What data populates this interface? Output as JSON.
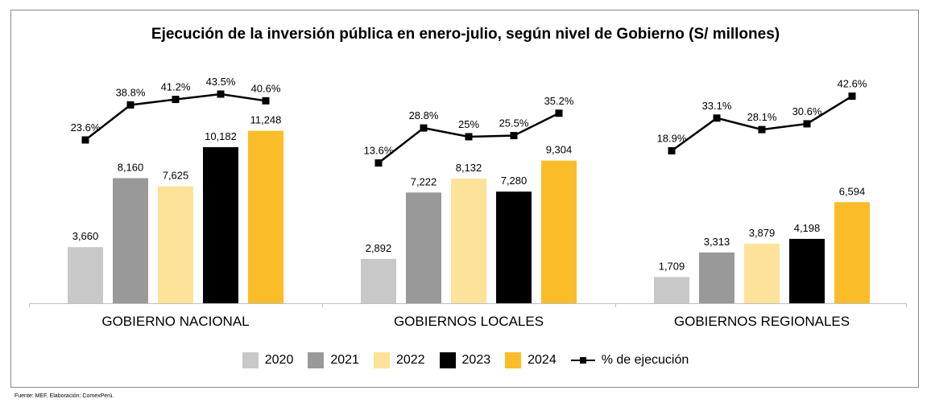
{
  "title": "Ejecución de la inversión pública en enero-julio, según nivel de Gobierno (S/ millones)",
  "source": "Fuente: MEF. Elaboración: ComexPerú.",
  "chart_data": {
    "type": "bar",
    "title": "Ejecución de la inversión pública en enero-julio, según nivel de Gobierno (S/ millones)",
    "categories": [
      "GOBIERNO NACIONAL",
      "GOBIERNOS LOCALES",
      "GOBIERNOS REGIONALES"
    ],
    "series": [
      {
        "name": "2020",
        "color": "#c8c8c8",
        "values": [
          3660,
          2892,
          1709
        ],
        "labels": [
          "3,660",
          "2,892",
          "1,709"
        ]
      },
      {
        "name": "2021",
        "color": "#999999",
        "values": [
          8160,
          7222,
          3313
        ],
        "labels": [
          "8,160",
          "7,222",
          "3,313"
        ]
      },
      {
        "name": "2022",
        "color": "#fde29a",
        "values": [
          7625,
          8132,
          3879
        ],
        "labels": [
          "7,625",
          "8,132",
          "3,879"
        ]
      },
      {
        "name": "2023",
        "color": "#000000",
        "values": [
          10182,
          7280,
          4198
        ],
        "labels": [
          "10,182",
          "7,280",
          "4,198"
        ]
      },
      {
        "name": "2024",
        "color": "#fbbc29",
        "values": [
          11248,
          9304,
          6594
        ],
        "labels": [
          "11,248",
          "9,304",
          "6,594"
        ]
      }
    ],
    "line_series": {
      "name": "% de ejecución",
      "color": "#000000",
      "values": [
        [
          23.6,
          38.8,
          41.2,
          43.5,
          40.6
        ],
        [
          13.6,
          28.8,
          25,
          25.5,
          35.2
        ],
        [
          18.9,
          33.1,
          28.1,
          30.6,
          42.6
        ]
      ],
      "labels": [
        [
          "23.6%",
          "38.8%",
          "41.2%",
          "43.5%",
          "40.6%"
        ],
        [
          "13.6%",
          "28.8%",
          "25%",
          "25.5%",
          "35.2%"
        ],
        [
          "18.9%",
          "33.1%",
          "28.1%",
          "30.6%",
          "42.6%"
        ]
      ]
    },
    "legend": "bottom",
    "grid": false
  }
}
